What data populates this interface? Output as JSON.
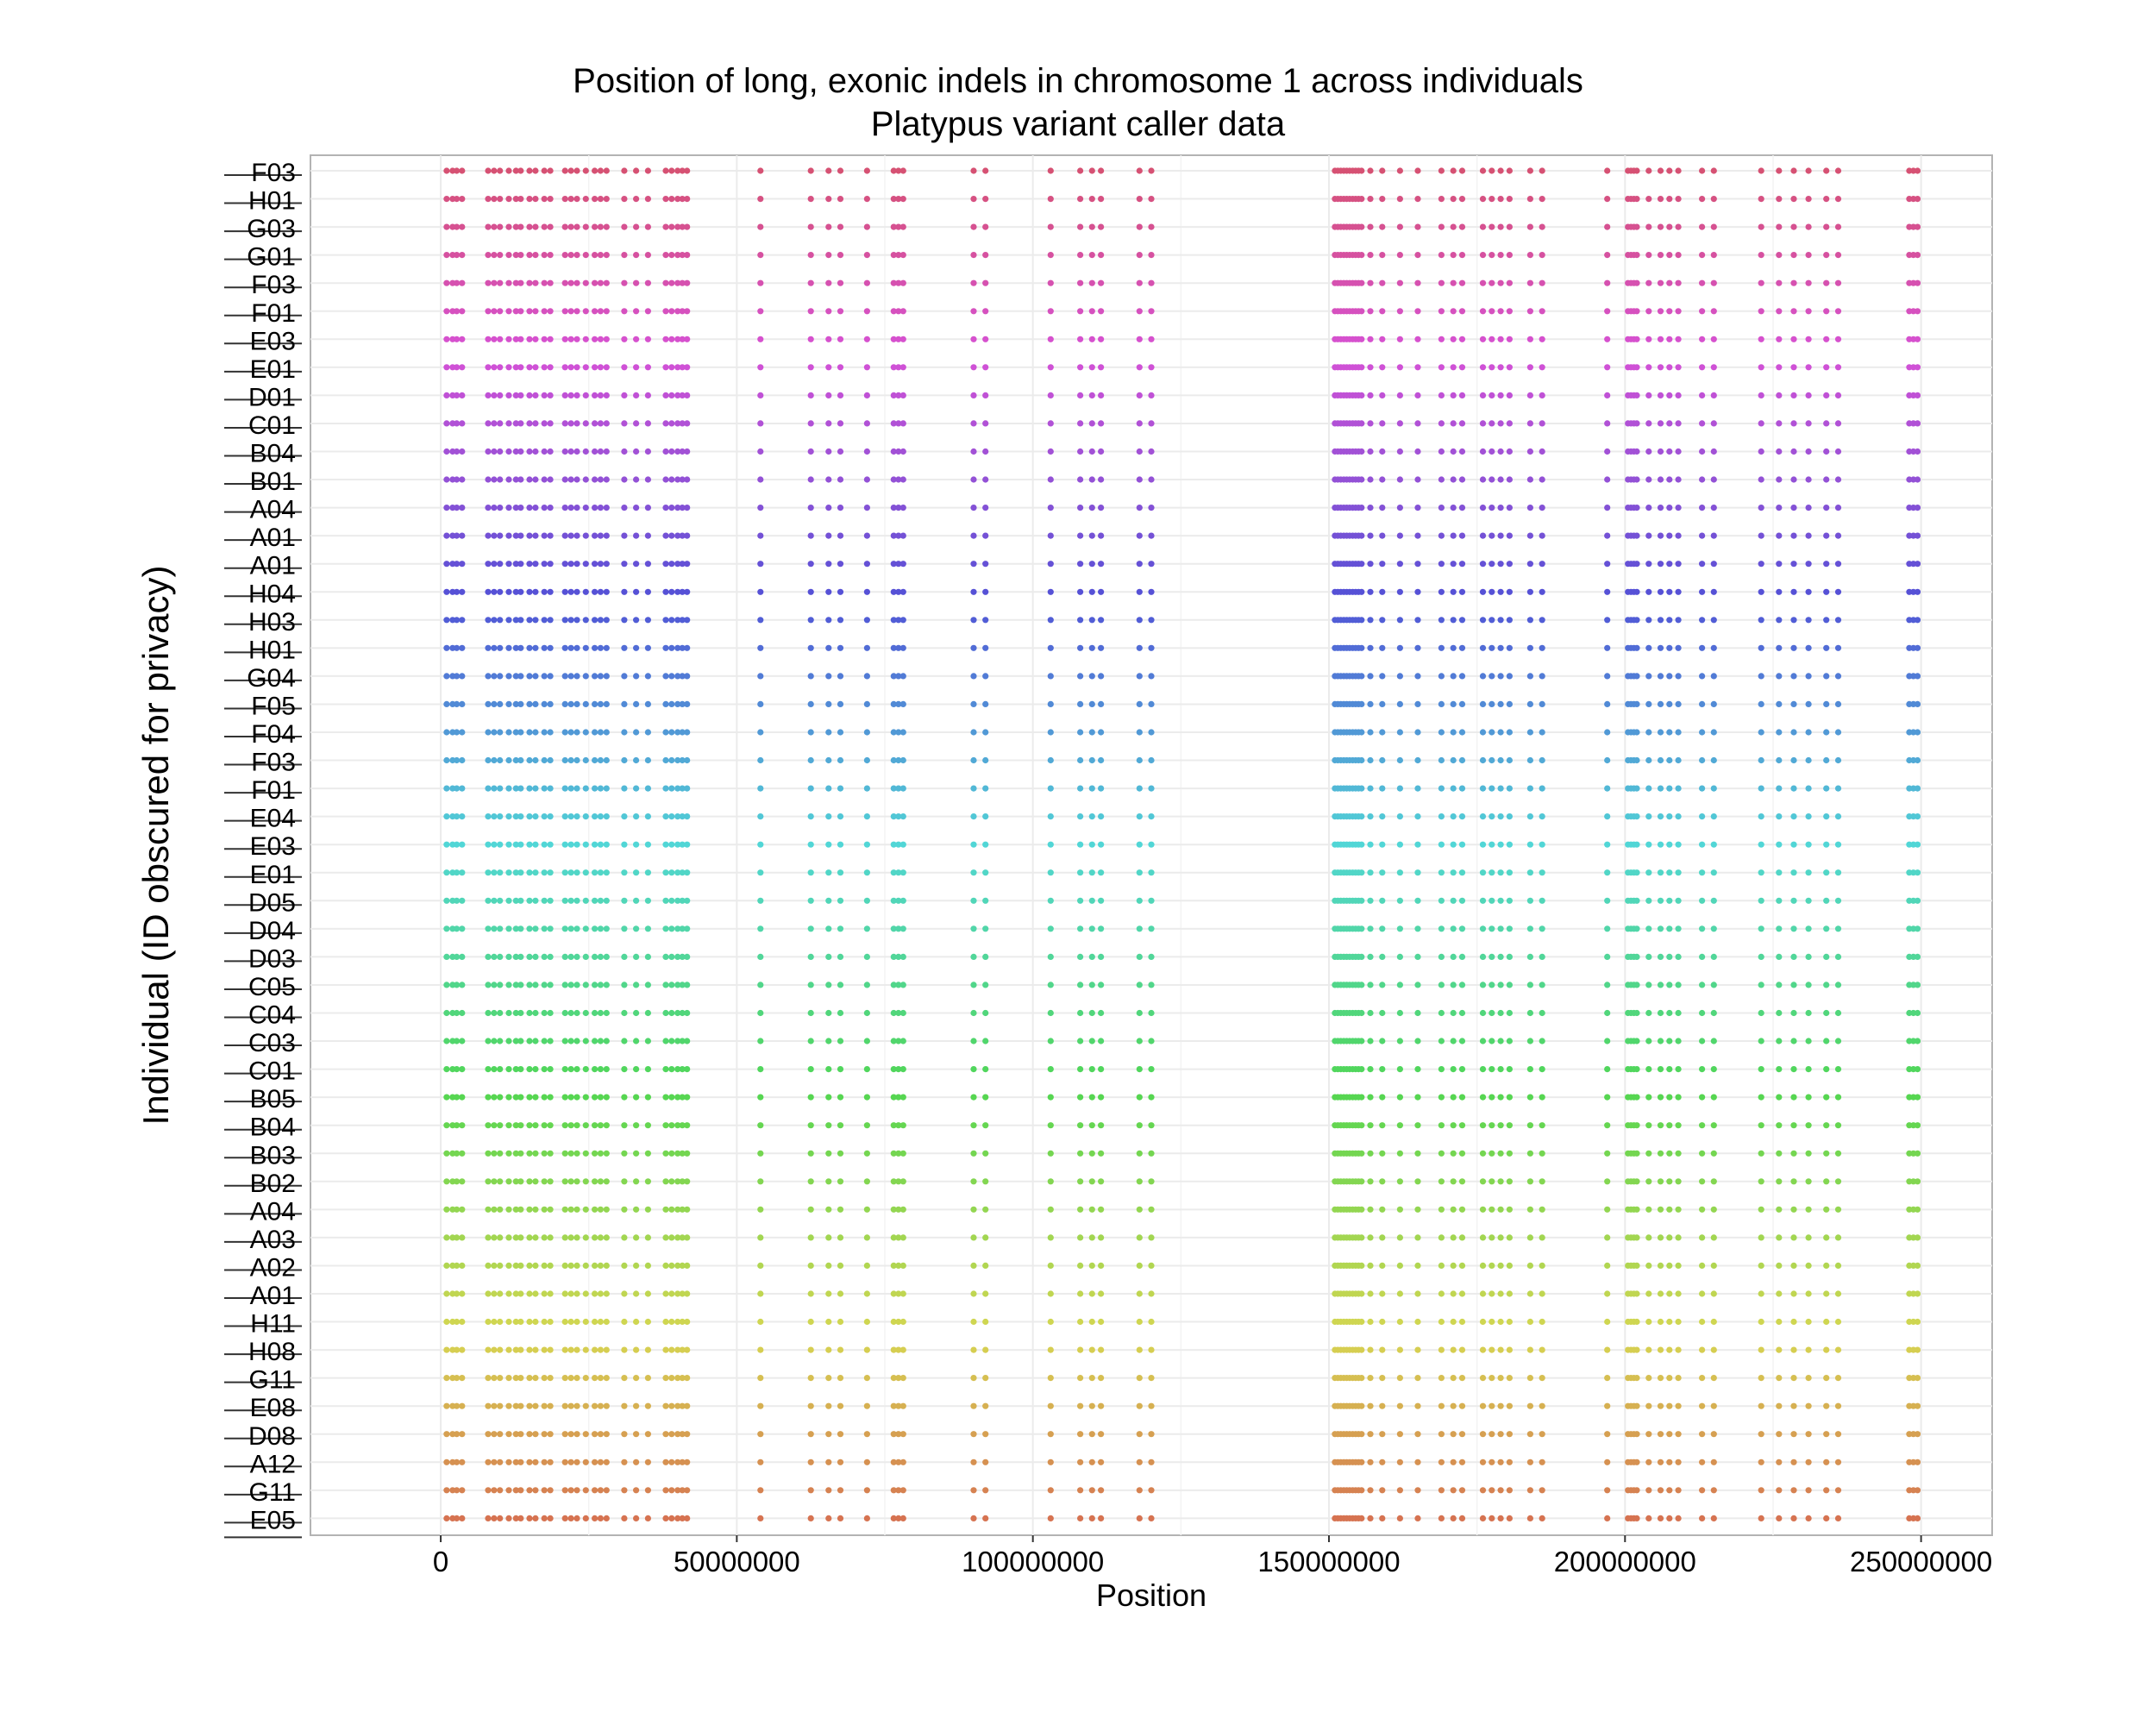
{
  "chart_data": {
    "type": "scatter",
    "title": "Position of long, exonic indels in chromosome 1 across individuals",
    "subtitle": "Platypus variant caller data",
    "xlabel": "Position",
    "ylabel": "Individual (ID obscured for privacy)",
    "xlim": [
      -22000000,
      262000000
    ],
    "x_ticks": [
      0,
      50000000,
      100000000,
      150000000,
      200000000,
      250000000
    ],
    "x_tick_labels": [
      "0",
      "50000000",
      "100000000",
      "150000000",
      "200000000",
      "250000000"
    ],
    "grid": true,
    "legend": "none",
    "individuals": [
      "F03",
      "H01",
      "G03",
      "G01",
      "F03",
      "F01",
      "E03",
      "E01",
      "D01",
      "C01",
      "B04",
      "B01",
      "A04",
      "A01",
      "A01",
      "H04",
      "H03",
      "H01",
      "G04",
      "F05",
      "F04",
      "F03",
      "F01",
      "E04",
      "E03",
      "E01",
      "D05",
      "D04",
      "D03",
      "C05",
      "C04",
      "C03",
      "C01",
      "B05",
      "B04",
      "B03",
      "B02",
      "A04",
      "A03",
      "A02",
      "A01",
      "H11",
      "H08",
      "G11",
      "E08",
      "D08",
      "A12",
      "G11",
      "E05"
    ],
    "positions": [
      1000000,
      2000000,
      2700000,
      3600000,
      8000000,
      9000000,
      10000000,
      11500000,
      12700000,
      13500000,
      15000000,
      16000000,
      17500000,
      18500000,
      21000000,
      22000000,
      23000000,
      24500000,
      26000000,
      27000000,
      28000000,
      31000000,
      33000000,
      35000000,
      38000000,
      39000000,
      40000000,
      40800000,
      41600000,
      54000000,
      62500000,
      65500000,
      67500000,
      72000000,
      76500000,
      77300000,
      78100000,
      90000000,
      92000000,
      103000000,
      108000000,
      110000000,
      111500000,
      118000000,
      120000000,
      151000000,
      151500000,
      152000000,
      152500000,
      153000000,
      153500000,
      154000000,
      154500000,
      155000000,
      155500000,
      157000000,
      159000000,
      162000000,
      165000000,
      169000000,
      171000000,
      172500000,
      176000000,
      177500000,
      179000000,
      180500000,
      184000000,
      186000000,
      197000000,
      200500000,
      201000000,
      201500000,
      202000000,
      204000000,
      206000000,
      207500000,
      209000000,
      213000000,
      215000000,
      223000000,
      226000000,
      228500000,
      231000000,
      234000000,
      236000000,
      248000000,
      248700000,
      249400000
    ]
  }
}
